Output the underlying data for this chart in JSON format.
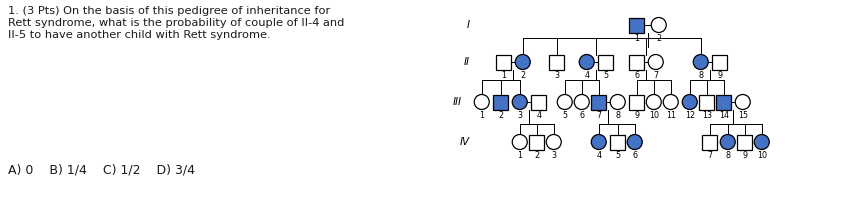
{
  "title_text": "1. (3 Pts) On the basis of this pedigree of inheritance for\nRett syndrome, what is the probability of couple of II-4 and\nII-5 to have another child with Rett syndrome.",
  "choices_text": "A) 0    B) 1/4    C) 1/2    D) 3/4",
  "bg_color": "#ffffff",
  "affected_color": "#4472c4",
  "unaffected_fill": "#ffffff",
  "line_color": "#000000",
  "text_color": "#1a1a1a",
  "gen_labels": [
    "I",
    "II",
    "III",
    "IV"
  ],
  "title_fontsize": 8.2,
  "choices_fontsize": 9.0,
  "label_fontsize": 5.8,
  "gen_label_fontsize": 7.5
}
